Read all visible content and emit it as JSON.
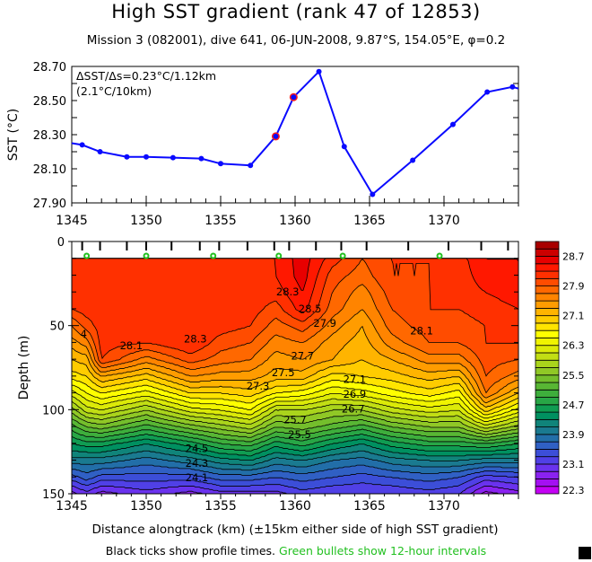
{
  "title": "High SST gradient (rank 47 of 12853)",
  "subtitle": "Mission 3 (082001),  dive 641,  06-JUN-2008,  9.87°S, 154.05°E,  φ=0.2",
  "xlabel": "Distance alongtrack (km) (±15km either side of high SST gradient)",
  "footer": {
    "black_part": "Black ticks show profile times.",
    "green_part": "Green bullets show 12-hour intervals"
  },
  "colors": {
    "line": "#0a0aff",
    "highlight": "#ff1a1a",
    "bullet": "#22c020"
  },
  "chart_data": [
    {
      "type": "line",
      "ylabel": "SST (°C)",
      "xlim": [
        1345,
        1375
      ],
      "ylim": [
        27.9,
        28.7
      ],
      "xticks": [
        "1345",
        "1350",
        "1355",
        "1360",
        "1365",
        "1370"
      ],
      "yticks": [
        "27.90",
        "28.10",
        "28.30",
        "28.50",
        "28.70"
      ],
      "annotation": [
        "ΔSST/Δs=0.23°C/1.12km",
        "(2.1°C/10km)"
      ],
      "x": [
        1345.0,
        1345.7,
        1346.9,
        1348.7,
        1350.0,
        1351.8,
        1353.7,
        1355.0,
        1357.0,
        1358.7,
        1359.9,
        1361.6,
        1363.3,
        1365.2,
        1367.9,
        1370.6,
        1372.9,
        1374.6,
        1375.0
      ],
      "y": [
        28.25,
        28.24,
        28.2,
        28.17,
        28.17,
        28.165,
        28.16,
        28.13,
        28.12,
        28.29,
        28.52,
        28.67,
        28.23,
        27.95,
        28.15,
        28.36,
        28.55,
        28.58,
        28.57
      ],
      "markers": [
        false,
        true,
        true,
        true,
        true,
        true,
        true,
        true,
        true,
        true,
        true,
        true,
        true,
        true,
        true,
        true,
        true,
        true,
        false
      ],
      "highlighted_x": [
        1358.7,
        1359.9
      ]
    },
    {
      "type": "heatmap",
      "ylabel": "Depth (m)",
      "xlim": [
        1345,
        1375
      ],
      "ylim": [
        0,
        150
      ],
      "y_inverted": true,
      "xticks": [
        "1345",
        "1350",
        "1355",
        "1360",
        "1365",
        "1370"
      ],
      "yticks": [
        "0",
        "50",
        "100",
        "150"
      ],
      "colorbar": {
        "min": 22.3,
        "step": 0.2,
        "labels": [
          "22.3",
          "23.1",
          "23.9",
          "24.7",
          "25.5",
          "26.3",
          "27.1",
          "27.9",
          "28.7"
        ],
        "colors": [
          "#c400f4",
          "#a410f2",
          "#8a22f0",
          "#6a32ee",
          "#5040e6",
          "#3c4ed8",
          "#3060c4",
          "#226ea8",
          "#1a7a90",
          "#10847a",
          "#009060",
          "#109c52",
          "#28a646",
          "#3eae3c",
          "#58b634",
          "#74be2c",
          "#90c826",
          "#aad41c",
          "#c2de14",
          "#dcea08",
          "#f0f400",
          "#ffff00",
          "#ffe400",
          "#ffcc00",
          "#ffb400",
          "#ff9c00",
          "#ff8400",
          "#ff6800",
          "#ff4c00",
          "#ff3000",
          "#ff1800",
          "#e80000",
          "#cc0000",
          "#a80000"
        ]
      },
      "profile_km": [
        1345.7,
        1346.9,
        1348.7,
        1350.0,
        1351.7,
        1353.6,
        1354.9,
        1356.8,
        1358.6,
        1359.6,
        1361.4,
        1363.1,
        1364.8,
        1367.6,
        1370.3,
        1372.5,
        1374.3
      ],
      "bullet_km": [
        1346.0,
        1350.0,
        1354.5,
        1358.9,
        1363.2,
        1369.7
      ],
      "depths": [
        10,
        20,
        30,
        40,
        50,
        60,
        70,
        80,
        90,
        100,
        110,
        120,
        130,
        140,
        150
      ],
      "stations_km": [
        1345,
        1346,
        1347,
        1350,
        1353,
        1355,
        1357,
        1358.7,
        1360.5,
        1362.5,
        1364.5,
        1366.5,
        1369,
        1371,
        1372.8,
        1375
      ],
      "temperature": [
        [
          28.2,
          28.2,
          28.2,
          28.1,
          27.7,
          27.4,
          27.1,
          26.8,
          26.2,
          25.6,
          25.0,
          24.5,
          24.0,
          23.4,
          22.8
        ],
        [
          28.2,
          28.2,
          28.2,
          28.2,
          28.0,
          27.6,
          27.2,
          26.9,
          26.5,
          26.0,
          25.3,
          24.6,
          24.0,
          23.6,
          23.0
        ],
        [
          28.2,
          28.2,
          28.2,
          28.2,
          28.2,
          28.2,
          28.1,
          27.3,
          26.7,
          26.1,
          25.4,
          24.6,
          24.0,
          23.4,
          22.8
        ],
        [
          28.2,
          28.2,
          28.2,
          28.2,
          28.2,
          28.1,
          27.6,
          27.0,
          26.4,
          25.7,
          25.0,
          24.3,
          23.8,
          23.4,
          23.0
        ],
        [
          28.2,
          28.2,
          28.2,
          28.2,
          28.3,
          28.3,
          28.0,
          27.5,
          26.9,
          26.2,
          25.4,
          24.6,
          24.0,
          23.4,
          22.8
        ],
        [
          28.2,
          28.2,
          28.2,
          28.2,
          28.2,
          28.0,
          27.8,
          27.4,
          26.9,
          26.3,
          25.6,
          24.9,
          24.2,
          23.6,
          23.0
        ],
        [
          28.2,
          28.2,
          28.2,
          28.2,
          28.1,
          27.9,
          27.7,
          27.4,
          27.0,
          26.5,
          25.8,
          25.0,
          24.3,
          23.6,
          23.0
        ],
        [
          28.3,
          28.3,
          28.2,
          28.0,
          27.8,
          27.6,
          27.4,
          27.2,
          26.7,
          25.9,
          25.3,
          24.6,
          24.0,
          23.5,
          23.0
        ],
        [
          28.6,
          28.6,
          28.5,
          28.4,
          28.0,
          27.7,
          27.5,
          27.2,
          26.6,
          25.9,
          25.4,
          24.8,
          24.1,
          23.6,
          23.2
        ],
        [
          28.2,
          28.0,
          27.9,
          27.8,
          27.6,
          27.4,
          27.3,
          26.8,
          26.3,
          25.7,
          25.2,
          24.5,
          23.9,
          23.5,
          23.1
        ],
        [
          27.9,
          27.8,
          27.6,
          27.5,
          27.3,
          27.2,
          27.1,
          26.9,
          26.4,
          25.7,
          25.0,
          24.3,
          23.8,
          23.4,
          23.1
        ],
        [
          28.1,
          28.1,
          28.0,
          27.9,
          27.8,
          27.6,
          27.3,
          27.0,
          26.6,
          26.0,
          25.3,
          24.6,
          24.0,
          23.5,
          23.1
        ],
        [
          28.1,
          28.1,
          28.1,
          28.1,
          28.0,
          27.9,
          27.6,
          27.2,
          26.8,
          26.2,
          25.5,
          24.8,
          24.1,
          23.6,
          23.2
        ],
        [
          28.2,
          28.2,
          28.2,
          28.1,
          28.0,
          27.9,
          27.6,
          27.1,
          26.6,
          26.1,
          25.5,
          24.8,
          24.1,
          23.5,
          23.1
        ],
        [
          28.5,
          28.4,
          28.3,
          28.2,
          28.1,
          28.1,
          28.0,
          27.9,
          27.7,
          27.0,
          26.0,
          24.9,
          24.0,
          23.2,
          22.6
        ],
        [
          28.5,
          28.5,
          28.4,
          28.3,
          28.2,
          28.1,
          27.9,
          27.6,
          27.1,
          26.4,
          25.6,
          24.7,
          24.0,
          23.3,
          22.8
        ]
      ],
      "contour_labels": [
        {
          "text": "4",
          "km": 1345.8,
          "depth": 55
        },
        {
          "text": "28.1",
          "km": 1349.0,
          "depth": 62
        },
        {
          "text": "28.3",
          "km": 1353.3,
          "depth": 58
        },
        {
          "text": "27.3",
          "km": 1357.5,
          "depth": 86
        },
        {
          "text": "27.5",
          "km": 1359.2,
          "depth": 78
        },
        {
          "text": "28.3",
          "km": 1359.5,
          "depth": 30
        },
        {
          "text": "28.5",
          "km": 1361.0,
          "depth": 40
        },
        {
          "text": "27.9",
          "km": 1362.0,
          "depth": 46
        },
        {
          "text": "27.7",
          "km": 1360.5,
          "depth": 68
        },
        {
          "text": "27.1",
          "km": 1364.0,
          "depth": 82
        },
        {
          "text": "26.9",
          "km": 1364.0,
          "depth": 87
        },
        {
          "text": "26.7",
          "km": 1363.9,
          "depth": 92
        },
        {
          "text": "28.1",
          "km": 1368.5,
          "depth": 53
        },
        {
          "text": "25.7",
          "km": 1360.0,
          "depth": 106
        },
        {
          "text": "25.5",
          "km": 1360.3,
          "depth": 112
        },
        {
          "text": "24.5",
          "km": 1353.4,
          "depth": 123
        },
        {
          "text": "24.3",
          "km": 1353.4,
          "depth": 128
        },
        {
          "text": "24.1",
          "km": 1353.4,
          "depth": 133
        }
      ]
    }
  ]
}
